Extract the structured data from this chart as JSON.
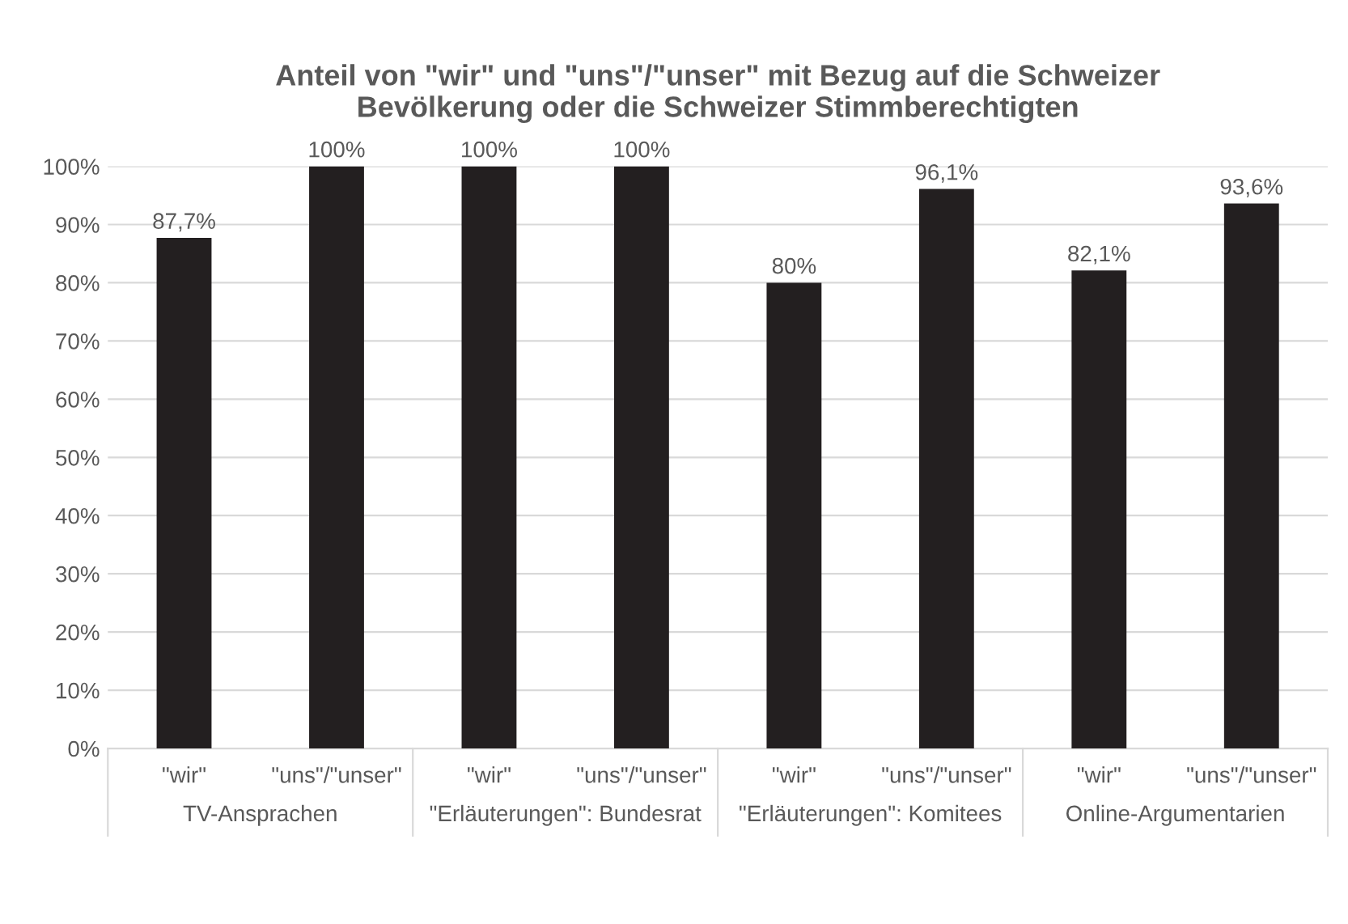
{
  "chart_data": {
    "type": "bar",
    "title": "Anteil von \"wir\" und \"uns\"/\"unser\" mit Bezug auf die Schweizer\nBevölkerung oder die Schweizer Stimmberechtigten",
    "categories": [
      "\"wir\"",
      "\"uns\"/\"unser\"",
      "\"wir\"",
      "\"uns\"/\"unser\"",
      "\"wir\"",
      "\"uns\"/\"unser\"",
      "\"wir\"",
      "\"uns\"/\"unser\""
    ],
    "values": [
      87.7,
      100,
      100,
      100,
      80,
      96.1,
      82.1,
      93.6
    ],
    "value_labels": [
      "87,7%",
      "100%",
      "100%",
      "100%",
      "80%",
      "96,1%",
      "82,1%",
      "93,6%"
    ],
    "color": "#231f20",
    "annotations": [
      "TV-Ansprachen",
      "\"Erläuterungen\": Bundesrat",
      "\"Erläuterungen\": Komitees",
      "Online-Argumentarien"
    ],
    "ylim": [
      0,
      100
    ],
    "yticks": [
      {
        "value": 0,
        "label": "0%"
      },
      {
        "value": 10,
        "label": "10%"
      },
      {
        "value": 20,
        "label": "20%"
      },
      {
        "value": 30,
        "label": "30%"
      },
      {
        "value": 40,
        "label": "40%"
      },
      {
        "value": 50,
        "label": "50%"
      },
      {
        "value": 60,
        "label": "60%"
      },
      {
        "value": 70,
        "label": "70%"
      },
      {
        "value": 80,
        "label": "80%"
      },
      {
        "value": 90,
        "label": "90%"
      },
      {
        "value": 100,
        "label": "100%"
      }
    ],
    "grid": "y",
    "legend": false
  }
}
